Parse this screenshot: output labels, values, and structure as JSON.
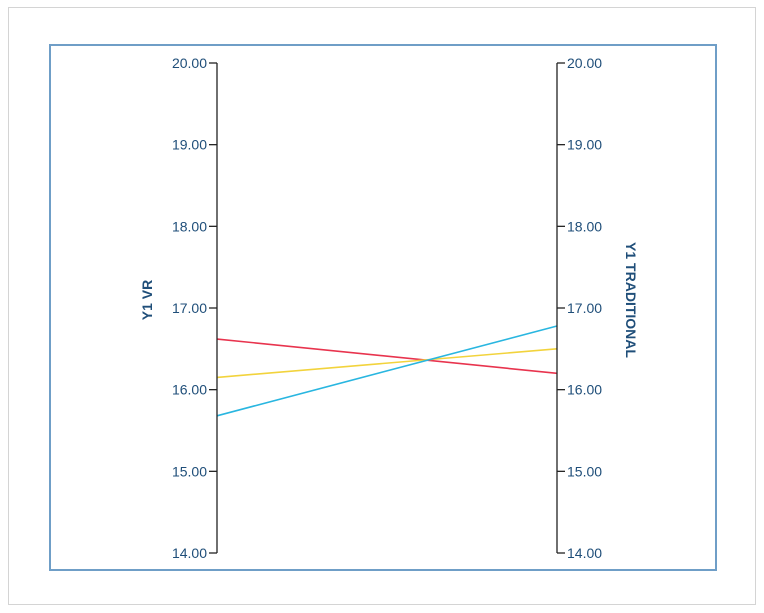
{
  "chart_data": {
    "type": "line",
    "chart_subtype": "parallel-coordinates",
    "axes": [
      {
        "name": "Y1 VR",
        "range": [
          14.0,
          20.0
        ],
        "ticks": [
          "20.00",
          "19.00",
          "18.00",
          "17.00",
          "16.00",
          "15.00",
          "14.00"
        ],
        "tick_values": [
          20,
          19,
          18,
          17,
          16,
          15,
          14
        ]
      },
      {
        "name": "Y1 TRADITIONAL",
        "range": [
          14.0,
          20.0
        ],
        "ticks": [
          "20.00",
          "19.00",
          "18.00",
          "17.00",
          "16.00",
          "15.00",
          "14.00"
        ],
        "tick_values": [
          20,
          19,
          18,
          17,
          16,
          15,
          14
        ]
      }
    ],
    "series": [
      {
        "color": "#e8344e",
        "values": [
          16.62,
          16.2
        ]
      },
      {
        "color": "#f2d33c",
        "values": [
          16.15,
          16.5
        ]
      },
      {
        "color": "#29b6e0",
        "values": [
          15.68,
          16.78
        ]
      }
    ],
    "grid": false,
    "legend": "none"
  },
  "colors": {
    "frame_border": "#6f9ec7",
    "axis_line": "#222222",
    "label_text": "#1f4e79"
  }
}
